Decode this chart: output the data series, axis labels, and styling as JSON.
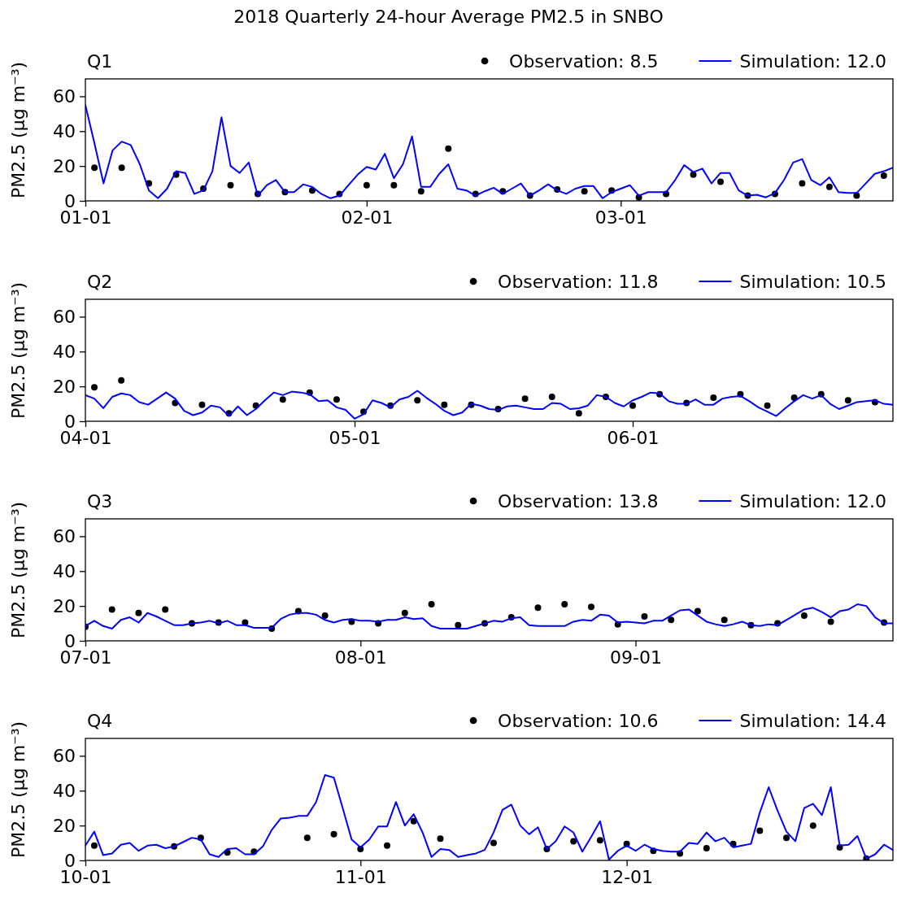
{
  "chart_data": [
    {
      "type": "line",
      "title": "Q1",
      "annotations": [
        "2018 Quarterly 24-hour Average PM2.5 in SNBO"
      ],
      "ylabel": "PM2.5 (μg m⁻³)",
      "xlim": [
        "2018-01-01",
        "2018-03-31"
      ],
      "xticks": [
        {
          "value": "2018-01-01",
          "label": "01-01"
        },
        {
          "value": "2018-02-01",
          "label": "02-01"
        },
        {
          "value": "2018-03-01",
          "label": "03-01"
        }
      ],
      "ylim": [
        0,
        70
      ],
      "yticks": [
        0,
        20,
        40,
        60
      ],
      "legend": "top right",
      "series": [
        {
          "name": "Observation: 8.5",
          "type": "scatter",
          "marker": "circle",
          "color": "#000000",
          "x": [
            "2018-01-02",
            "2018-01-05",
            "2018-01-08",
            "2018-01-11",
            "2018-01-14",
            "2018-01-17",
            "2018-01-20",
            "2018-01-23",
            "2018-01-26",
            "2018-01-29",
            "2018-02-01",
            "2018-02-04",
            "2018-02-07",
            "2018-02-10",
            "2018-02-13",
            "2018-02-16",
            "2018-02-19",
            "2018-02-22",
            "2018-02-25",
            "2018-02-28",
            "2018-03-03",
            "2018-03-06",
            "2018-03-09",
            "2018-03-12",
            "2018-03-15",
            "2018-03-18",
            "2018-03-21",
            "2018-03-24",
            "2018-03-27",
            "2018-03-30"
          ],
          "values": [
            19,
            19,
            10,
            15,
            7,
            9,
            4,
            5,
            6,
            4,
            9,
            9,
            5.5,
            30,
            4,
            5.5,
            3,
            6.5,
            5.5,
            6,
            2,
            4,
            15,
            11,
            3,
            4,
            10,
            8,
            3,
            14.5
          ]
        },
        {
          "name": "Simulation: 12.0",
          "type": "line",
          "marker": "none",
          "color": "#0000ff",
          "x": [
            "2018-01-01",
            "2018-01-02",
            "2018-01-03",
            "2018-01-04",
            "2018-01-05",
            "2018-01-06",
            "2018-01-07",
            "2018-01-08",
            "2018-01-09",
            "2018-01-10",
            "2018-01-11",
            "2018-01-12",
            "2018-01-13",
            "2018-01-14",
            "2018-01-15",
            "2018-01-16",
            "2018-01-17",
            "2018-01-18",
            "2018-01-19",
            "2018-01-20",
            "2018-01-21",
            "2018-01-22",
            "2018-01-23",
            "2018-01-24",
            "2018-01-25",
            "2018-01-26",
            "2018-01-27",
            "2018-01-28",
            "2018-01-29",
            "2018-01-30",
            "2018-01-31",
            "2018-02-01",
            "2018-02-02",
            "2018-02-03",
            "2018-02-04",
            "2018-02-05",
            "2018-02-06",
            "2018-02-07",
            "2018-02-08",
            "2018-02-09",
            "2018-02-10",
            "2018-02-11",
            "2018-02-12",
            "2018-02-13",
            "2018-02-14",
            "2018-02-15",
            "2018-02-16",
            "2018-02-17",
            "2018-02-18",
            "2018-02-19",
            "2018-02-20",
            "2018-02-21",
            "2018-02-22",
            "2018-02-23",
            "2018-02-24",
            "2018-02-25",
            "2018-02-26",
            "2018-02-27",
            "2018-02-28",
            "2018-03-01",
            "2018-03-02",
            "2018-03-03",
            "2018-03-04",
            "2018-03-05",
            "2018-03-06",
            "2018-03-07",
            "2018-03-08",
            "2018-03-09",
            "2018-03-10",
            "2018-03-11",
            "2018-03-12",
            "2018-03-13",
            "2018-03-14",
            "2018-03-15",
            "2018-03-16",
            "2018-03-17",
            "2018-03-18",
            "2018-03-19",
            "2018-03-20",
            "2018-03-21",
            "2018-03-22",
            "2018-03-23",
            "2018-03-24",
            "2018-03-25",
            "2018-03-26",
            "2018-03-27",
            "2018-03-28",
            "2018-03-29",
            "2018-03-30",
            "2018-03-31"
          ],
          "values": [
            55,
            33,
            10,
            29,
            34,
            32,
            21,
            6,
            1.5,
            7,
            17,
            16,
            4,
            6,
            17,
            48,
            20,
            16,
            22,
            3,
            9,
            12,
            5,
            5,
            9.5,
            8,
            4,
            1.5,
            3,
            9,
            15,
            19.5,
            18,
            27,
            13,
            21,
            37,
            8,
            8,
            15.5,
            21,
            7,
            6,
            3,
            5.5,
            7.5,
            4,
            7,
            10,
            3,
            6,
            9.5,
            6,
            4,
            7,
            8.5,
            8.5,
            1.5,
            5,
            7,
            9,
            3,
            5,
            5,
            5,
            12,
            20.5,
            16.5,
            18.5,
            10,
            16,
            16,
            6,
            3,
            3.5,
            2,
            4.5,
            12,
            22,
            24,
            12,
            9,
            13.5,
            5,
            4.5,
            4.5,
            10,
            15.5,
            17,
            19
          ]
        }
      ]
    },
    {
      "type": "line",
      "title": "Q2",
      "ylabel": "PM2.5 (μg m⁻³)",
      "xlim": [
        "2018-04-01",
        "2018-06-30"
      ],
      "xticks": [
        {
          "value": "2018-04-01",
          "label": "04-01"
        },
        {
          "value": "2018-05-01",
          "label": "05-01"
        },
        {
          "value": "2018-06-01",
          "label": "06-01"
        }
      ],
      "ylim": [
        0,
        70
      ],
      "yticks": [
        0,
        20,
        40,
        60
      ],
      "legend": "top right",
      "series": [
        {
          "name": "Observation: 11.8",
          "type": "scatter",
          "marker": "circle",
          "color": "#000000",
          "x": [
            "2018-04-02",
            "2018-04-05",
            "2018-04-11",
            "2018-04-14",
            "2018-04-17",
            "2018-04-20",
            "2018-04-23",
            "2018-04-26",
            "2018-04-29",
            "2018-05-02",
            "2018-05-05",
            "2018-05-08",
            "2018-05-11",
            "2018-05-14",
            "2018-05-17",
            "2018-05-20",
            "2018-05-23",
            "2018-05-26",
            "2018-05-29",
            "2018-06-01",
            "2018-06-04",
            "2018-06-07",
            "2018-06-10",
            "2018-06-13",
            "2018-06-16",
            "2018-06-19",
            "2018-06-22",
            "2018-06-25",
            "2018-06-28"
          ],
          "values": [
            19.5,
            23.5,
            10.5,
            9.5,
            4.5,
            9,
            12.5,
            16.5,
            12.5,
            5.5,
            9,
            12,
            9.5,
            9.5,
            7,
            13,
            14,
            4.5,
            14,
            9,
            15.5,
            10.5,
            13.5,
            15.5,
            9,
            13.5,
            15.5,
            12,
            11
          ]
        },
        {
          "name": "Simulation: 10.5",
          "type": "line",
          "marker": "none",
          "color": "#0000ff",
          "x": [
            "2018-04-01",
            "2018-04-02",
            "2018-04-03",
            "2018-04-04",
            "2018-04-05",
            "2018-04-06",
            "2018-04-07",
            "2018-04-08",
            "2018-04-09",
            "2018-04-10",
            "2018-04-11",
            "2018-04-12",
            "2018-04-13",
            "2018-04-14",
            "2018-04-15",
            "2018-04-16",
            "2018-04-17",
            "2018-04-18",
            "2018-04-19",
            "2018-04-20",
            "2018-04-21",
            "2018-04-22",
            "2018-04-23",
            "2018-04-24",
            "2018-04-25",
            "2018-04-26",
            "2018-04-27",
            "2018-04-28",
            "2018-04-29",
            "2018-04-30",
            "2018-05-01",
            "2018-05-02",
            "2018-05-03",
            "2018-05-04",
            "2018-05-05",
            "2018-05-06",
            "2018-05-07",
            "2018-05-08",
            "2018-05-09",
            "2018-05-10",
            "2018-05-11",
            "2018-05-12",
            "2018-05-13",
            "2018-05-14",
            "2018-05-15",
            "2018-05-16",
            "2018-05-17",
            "2018-05-18",
            "2018-05-19",
            "2018-05-20",
            "2018-05-21",
            "2018-05-22",
            "2018-05-23",
            "2018-05-24",
            "2018-05-25",
            "2018-05-26",
            "2018-05-27",
            "2018-05-28",
            "2018-05-29",
            "2018-05-30",
            "2018-05-31",
            "2018-06-01",
            "2018-06-02",
            "2018-06-03",
            "2018-06-04",
            "2018-06-05",
            "2018-06-06",
            "2018-06-07",
            "2018-06-08",
            "2018-06-09",
            "2018-06-10",
            "2018-06-11",
            "2018-06-12",
            "2018-06-13",
            "2018-06-14",
            "2018-06-15",
            "2018-06-16",
            "2018-06-17",
            "2018-06-18",
            "2018-06-19",
            "2018-06-20",
            "2018-06-21",
            "2018-06-22",
            "2018-06-23",
            "2018-06-24",
            "2018-06-25",
            "2018-06-26",
            "2018-06-27",
            "2018-06-28",
            "2018-06-29",
            "2018-06-30"
          ],
          "values": [
            15,
            13,
            7.5,
            14,
            16,
            15,
            11,
            9.5,
            13,
            16.5,
            13,
            6,
            3.5,
            5,
            9,
            8,
            3,
            8.5,
            3.5,
            7,
            12,
            16.5,
            15,
            17,
            16.5,
            15.5,
            11.5,
            12,
            8,
            6.5,
            1.5,
            4,
            12,
            10.5,
            8,
            12.5,
            14,
            17.5,
            13.5,
            10,
            6,
            3.5,
            5,
            10,
            9,
            7,
            6.5,
            8.5,
            9,
            8,
            7,
            7,
            10.5,
            10,
            7,
            7.5,
            9,
            15,
            14,
            10.5,
            8.5,
            12,
            14,
            16.5,
            16,
            11.5,
            10,
            10,
            12.5,
            9.5,
            9.5,
            13,
            14,
            14.5,
            11.5,
            8,
            5.5,
            3,
            7.5,
            11.5,
            15,
            13,
            15,
            10,
            7,
            9,
            11,
            11.5,
            12,
            10,
            9.5
          ]
        }
      ]
    },
    {
      "type": "line",
      "title": "Q3",
      "ylabel": "PM2.5 (μg m⁻³)",
      "xlim": [
        "2018-07-01",
        "2018-09-30"
      ],
      "xticks": [
        {
          "value": "2018-07-01",
          "label": "07-01"
        },
        {
          "value": "2018-08-01",
          "label": "08-01"
        },
        {
          "value": "2018-09-01",
          "label": "09-01"
        }
      ],
      "ylim": [
        0,
        70
      ],
      "yticks": [
        0,
        20,
        40,
        60
      ],
      "legend": "top right",
      "series": [
        {
          "name": "Observation: 13.8",
          "type": "scatter",
          "marker": "circle",
          "color": "#000000",
          "x": [
            "2018-07-01",
            "2018-07-04",
            "2018-07-07",
            "2018-07-10",
            "2018-07-13",
            "2018-07-16",
            "2018-07-19",
            "2018-07-22",
            "2018-07-25",
            "2018-07-28",
            "2018-07-31",
            "2018-08-03",
            "2018-08-06",
            "2018-08-09",
            "2018-08-12",
            "2018-08-15",
            "2018-08-18",
            "2018-08-21",
            "2018-08-24",
            "2018-08-27",
            "2018-08-30",
            "2018-09-02",
            "2018-09-05",
            "2018-09-08",
            "2018-09-11",
            "2018-09-14",
            "2018-09-17",
            "2018-09-20",
            "2018-09-23",
            "2018-09-29"
          ],
          "values": [
            8,
            18,
            16,
            18,
            10,
            10.5,
            10.5,
            7,
            17,
            14.5,
            11,
            10,
            16,
            21,
            9,
            10,
            13.5,
            19,
            21,
            19.5,
            9.5,
            14,
            12,
            17,
            12,
            9,
            10,
            14.5,
            11,
            10.5
          ]
        },
        {
          "name": "Simulation: 12.0",
          "type": "line",
          "marker": "none",
          "color": "#0000ff",
          "x": [
            "2018-07-01",
            "2018-07-02",
            "2018-07-03",
            "2018-07-04",
            "2018-07-05",
            "2018-07-06",
            "2018-07-07",
            "2018-07-08",
            "2018-07-09",
            "2018-07-10",
            "2018-07-11",
            "2018-07-12",
            "2018-07-13",
            "2018-07-14",
            "2018-07-15",
            "2018-07-16",
            "2018-07-17",
            "2018-07-18",
            "2018-07-19",
            "2018-07-20",
            "2018-07-21",
            "2018-07-22",
            "2018-07-23",
            "2018-07-24",
            "2018-07-25",
            "2018-07-26",
            "2018-07-27",
            "2018-07-28",
            "2018-07-29",
            "2018-07-30",
            "2018-07-31",
            "2018-08-01",
            "2018-08-02",
            "2018-08-03",
            "2018-08-04",
            "2018-08-05",
            "2018-08-06",
            "2018-08-07",
            "2018-08-08",
            "2018-08-09",
            "2018-08-10",
            "2018-08-11",
            "2018-08-12",
            "2018-08-13",
            "2018-08-14",
            "2018-08-15",
            "2018-08-16",
            "2018-08-17",
            "2018-08-18",
            "2018-08-19",
            "2018-08-20",
            "2018-08-21",
            "2018-08-22",
            "2018-08-23",
            "2018-08-24",
            "2018-08-25",
            "2018-08-26",
            "2018-08-27",
            "2018-08-28",
            "2018-08-29",
            "2018-08-30",
            "2018-08-31",
            "2018-09-01",
            "2018-09-02",
            "2018-09-03",
            "2018-09-04",
            "2018-09-05",
            "2018-09-06",
            "2018-09-07",
            "2018-09-08",
            "2018-09-09",
            "2018-09-10",
            "2018-09-11",
            "2018-09-12",
            "2018-09-13",
            "2018-09-14",
            "2018-09-15",
            "2018-09-16",
            "2018-09-17",
            "2018-09-18",
            "2018-09-19",
            "2018-09-20",
            "2018-09-21",
            "2018-09-22",
            "2018-09-23",
            "2018-09-24",
            "2018-09-25",
            "2018-09-26",
            "2018-09-27",
            "2018-09-28",
            "2018-09-29",
            "2018-09-30"
          ],
          "values": [
            8.5,
            11.5,
            8.5,
            7,
            12,
            13.5,
            10.5,
            16,
            14,
            11.5,
            9,
            9,
            10,
            10.5,
            11.5,
            10,
            11.5,
            9,
            9,
            7.5,
            7.5,
            7.5,
            12.5,
            15,
            16,
            16,
            15,
            12,
            10.5,
            12,
            12.5,
            11.5,
            11.5,
            11,
            12,
            12,
            13.5,
            12.5,
            13,
            8.5,
            7,
            7,
            7,
            7,
            8.5,
            10,
            11.5,
            11,
            13,
            13.5,
            9,
            8.5,
            8.5,
            8.5,
            8.5,
            11,
            12,
            11.5,
            15,
            14.5,
            10.5,
            11,
            10.5,
            10,
            11.5,
            11.5,
            14.5,
            17.5,
            18,
            14.5,
            11,
            9.5,
            8.5,
            9.5,
            11,
            9,
            8.5,
            9.5,
            9,
            12,
            15,
            18,
            19,
            16.5,
            13.5,
            17,
            18,
            21,
            20,
            13.5,
            10,
            10
          ]
        }
      ]
    },
    {
      "type": "line",
      "title": "Q4",
      "ylabel": "PM2.5 (μg m⁻³)",
      "xlim": [
        "2018-10-01",
        "2018-12-31"
      ],
      "xticks": [
        {
          "value": "2018-10-01",
          "label": "10-01"
        },
        {
          "value": "2018-11-01",
          "label": "11-01"
        },
        {
          "value": "2018-12-01",
          "label": "12-01"
        }
      ],
      "ylim": [
        0,
        70
      ],
      "yticks": [
        0,
        20,
        40,
        60
      ],
      "legend": "top right",
      "series": [
        {
          "name": "Observation: 10.6",
          "type": "scatter",
          "marker": "circle",
          "color": "#000000",
          "x": [
            "2018-10-02",
            "2018-10-11",
            "2018-10-14",
            "2018-10-17",
            "2018-10-20",
            "2018-10-26",
            "2018-10-29",
            "2018-11-01",
            "2018-11-04",
            "2018-11-07",
            "2018-11-10",
            "2018-11-16",
            "2018-11-22",
            "2018-11-25",
            "2018-11-28",
            "2018-12-01",
            "2018-12-04",
            "2018-12-07",
            "2018-12-10",
            "2018-12-13",
            "2018-12-16",
            "2018-12-19",
            "2018-12-22",
            "2018-12-25",
            "2018-12-28"
          ],
          "values": [
            8.5,
            8,
            13,
            4.5,
            5,
            13,
            15,
            6.5,
            8.5,
            22.5,
            12.5,
            10,
            6.5,
            11,
            11.5,
            9.5,
            5.5,
            4,
            7,
            9.5,
            17,
            13,
            20,
            7.5,
            1
          ]
        },
        {
          "name": "Simulation: 14.4",
          "type": "line",
          "marker": "none",
          "color": "#0000ff",
          "x": [
            "2018-10-01",
            "2018-10-02",
            "2018-10-03",
            "2018-10-04",
            "2018-10-05",
            "2018-10-06",
            "2018-10-07",
            "2018-10-08",
            "2018-10-09",
            "2018-10-10",
            "2018-10-11",
            "2018-10-12",
            "2018-10-13",
            "2018-10-14",
            "2018-10-15",
            "2018-10-16",
            "2018-10-17",
            "2018-10-18",
            "2018-10-19",
            "2018-10-20",
            "2018-10-21",
            "2018-10-22",
            "2018-10-23",
            "2018-10-24",
            "2018-10-25",
            "2018-10-26",
            "2018-10-27",
            "2018-10-28",
            "2018-10-29",
            "2018-10-30",
            "2018-10-31",
            "2018-11-01",
            "2018-11-02",
            "2018-11-03",
            "2018-11-04",
            "2018-11-05",
            "2018-11-06",
            "2018-11-07",
            "2018-11-08",
            "2018-11-09",
            "2018-11-10",
            "2018-11-11",
            "2018-11-12",
            "2018-11-13",
            "2018-11-14",
            "2018-11-15",
            "2018-11-16",
            "2018-11-17",
            "2018-11-18",
            "2018-11-19",
            "2018-11-20",
            "2018-11-21",
            "2018-11-22",
            "2018-11-23",
            "2018-11-24",
            "2018-11-25",
            "2018-11-26",
            "2018-11-27",
            "2018-11-28",
            "2018-11-29",
            "2018-11-30",
            "2018-12-01",
            "2018-12-02",
            "2018-12-03",
            "2018-12-04",
            "2018-12-05",
            "2018-12-06",
            "2018-12-07",
            "2018-12-08",
            "2018-12-09",
            "2018-12-10",
            "2018-12-11",
            "2018-12-12",
            "2018-12-13",
            "2018-12-14",
            "2018-12-15",
            "2018-12-16",
            "2018-12-17",
            "2018-12-18",
            "2018-12-19",
            "2018-12-20",
            "2018-12-21",
            "2018-12-22",
            "2018-12-23",
            "2018-12-24",
            "2018-12-25",
            "2018-12-26",
            "2018-12-27",
            "2018-12-28",
            "2018-12-29",
            "2018-12-30",
            "2018-12-31"
          ],
          "values": [
            8.5,
            16.5,
            3,
            4,
            9,
            10,
            5.5,
            8.5,
            9,
            7,
            8,
            10.5,
            13,
            12,
            3.5,
            2,
            6.5,
            7,
            3.5,
            3.5,
            8,
            17.5,
            24,
            24.5,
            25.5,
            25.5,
            33.5,
            49,
            47.5,
            30,
            12,
            7.5,
            12,
            19.5,
            19.5,
            33.5,
            20,
            26.5,
            16,
            2,
            6.5,
            6,
            2,
            3,
            4,
            6,
            16,
            29,
            32,
            20,
            15,
            19,
            6.5,
            11,
            19.5,
            16,
            5,
            13.5,
            22.5,
            0.5,
            5.5,
            8.5,
            5.5,
            9,
            6.5,
            5.5,
            5,
            5,
            10,
            9.5,
            16,
            11,
            13,
            7.5,
            8.5,
            9.5,
            27.5,
            42,
            28.5,
            16.5,
            11,
            30,
            32.5,
            26,
            42,
            8.5,
            9,
            14,
            1,
            3.5,
            9,
            6
          ]
        }
      ]
    }
  ]
}
